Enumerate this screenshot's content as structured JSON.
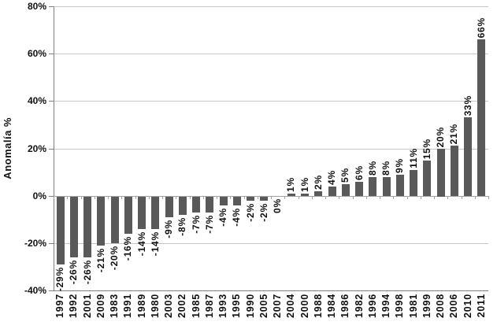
{
  "chart_data": {
    "type": "bar",
    "title": "",
    "xlabel": "",
    "ylabel": "Anomalía %",
    "ylim": [
      -40,
      80
    ],
    "grid": true,
    "legend": false,
    "categories": [
      "1997",
      "1992",
      "2001",
      "2009",
      "1983",
      "1991",
      "1989",
      "1980",
      "2003",
      "2002",
      "1985",
      "1987",
      "1993",
      "1995",
      "1990",
      "2005",
      "2007",
      "2004",
      "2000",
      "1988",
      "1984",
      "1986",
      "1982",
      "1996",
      "1994",
      "1998",
      "1981",
      "1999",
      "2008",
      "2006",
      "2010",
      "2011"
    ],
    "values": [
      -29,
      -26,
      -26,
      -21,
      -20,
      -16,
      -14,
      -14,
      -9,
      -8,
      -7,
      -7,
      -4,
      -4,
      -2,
      -2,
      0,
      1,
      1,
      2,
      4,
      5,
      6,
      8,
      8,
      9,
      11,
      15,
      20,
      21,
      33,
      66
    ],
    "bar_labels": [
      "-29%",
      "-26%",
      "-26%",
      "-21%",
      "-20%",
      "-16%",
      "-14%",
      "-14%",
      "-9%",
      "-8%",
      "-7%",
      "-7%",
      "-4%",
      "-4%",
      "-2%",
      "-2%",
      "0%",
      "1%",
      "1%",
      "2%",
      "4%",
      "5%",
      "6%",
      "8%",
      "8%",
      "9%",
      "11%",
      "15%",
      "20%",
      "21%",
      "33%",
      "66%"
    ],
    "yticks": [
      {
        "v": 80,
        "label": "80%"
      },
      {
        "v": 60,
        "label": "60%"
      },
      {
        "v": 40,
        "label": "40%"
      },
      {
        "v": 20,
        "label": "20%"
      },
      {
        "v": 0,
        "label": "0%"
      },
      {
        "v": -20,
        "label": "-20%"
      },
      {
        "v": -40,
        "label": "-40%"
      }
    ],
    "colors": {
      "bar": "#595959",
      "gridline": "#c6c6c6",
      "zero_line": "#a3a3a3",
      "axis": "#808080",
      "text": "#111111",
      "background": "#ffffff"
    }
  }
}
